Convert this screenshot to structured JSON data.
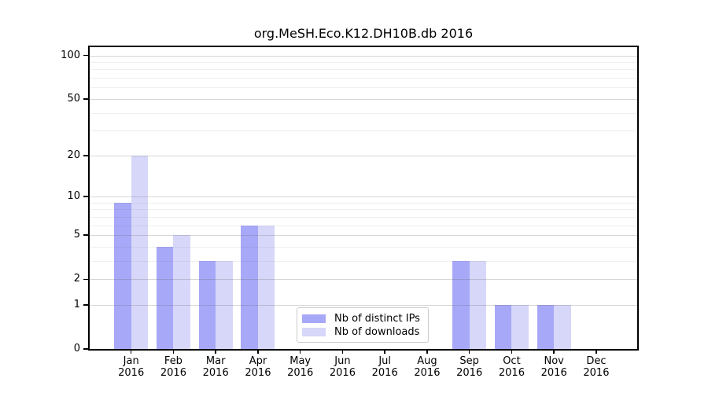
{
  "title": "org.MeSH.Eco.K12.DH10B.db 2016",
  "year": "2016",
  "chart_data": {
    "type": "bar",
    "title": "org.MeSH.Eco.K12.DH10B.db 2016",
    "categories": [
      "Jan",
      "Feb",
      "Mar",
      "Apr",
      "May",
      "Jun",
      "Jul",
      "Aug",
      "Sep",
      "Oct",
      "Nov",
      "Dec"
    ],
    "category_year": "2016",
    "series": [
      {
        "name": "Nb of distinct IPs",
        "color": "#a8a8f8",
        "values": [
          9,
          4,
          3,
          6,
          0,
          0,
          0,
          0,
          3,
          1,
          1,
          0
        ]
      },
      {
        "name": "Nb of downloads",
        "color": "#d7d7fa",
        "values": [
          20,
          5,
          3,
          6,
          0,
          0,
          0,
          0,
          3,
          1,
          1,
          0
        ]
      }
    ],
    "xlabel": "",
    "ylabel": "",
    "yscale": "log1p",
    "ylim": [
      0,
      115
    ],
    "y_major_ticks": [
      0,
      1,
      2,
      5,
      10,
      20,
      50,
      100
    ],
    "y_minor_ticks": [
      3,
      4,
      6,
      7,
      8,
      9,
      30,
      40,
      60,
      70,
      80,
      90
    ],
    "grid": true,
    "grid_over_bars": true,
    "legend_position": "lower center-right",
    "frame_color": "#000000",
    "major_grid_color": "#d7d7d7",
    "minor_grid_color": "#ececec"
  }
}
